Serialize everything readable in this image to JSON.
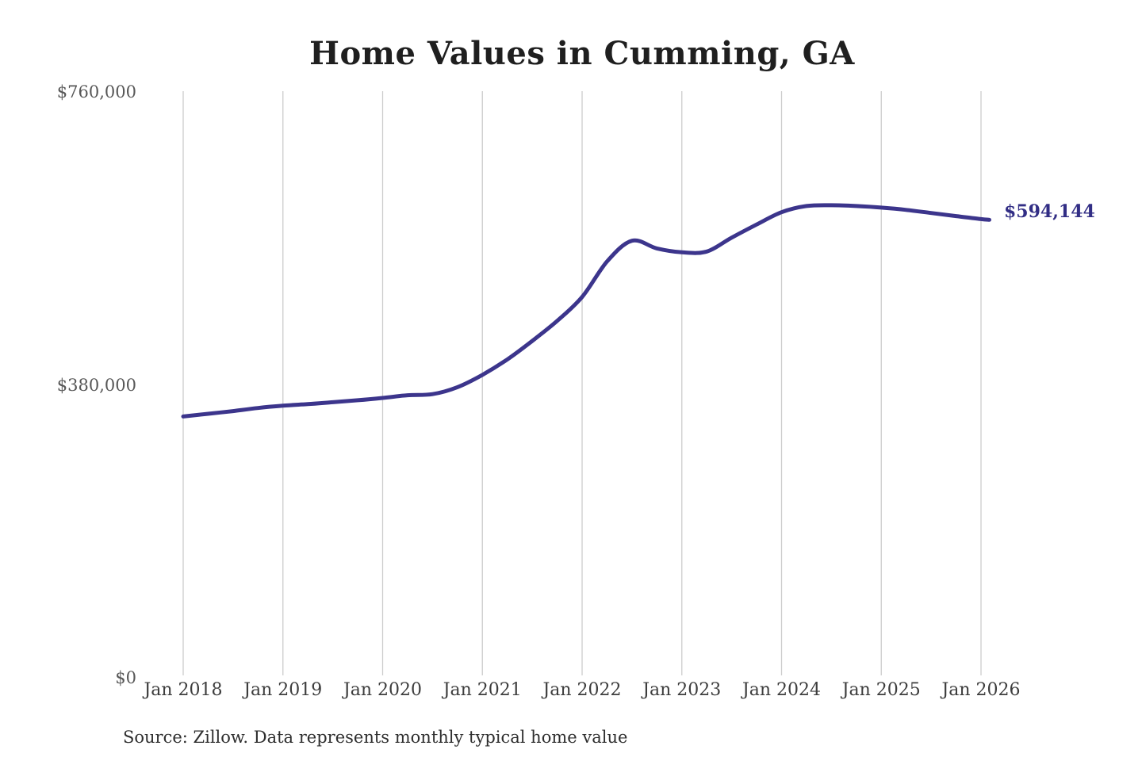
{
  "title": {
    "text": "Home Values in Cumming, GA",
    "color": "#1f1f1f"
  },
  "end_label": {
    "text": "$594,144",
    "color": "#322e85"
  },
  "source_note": {
    "text": "Source: Zillow. Data represents monthly typical home value",
    "color": "#2e2e2e"
  },
  "axes": {
    "x_tick_labels": [
      "Jan 2018",
      "Jan 2019",
      "Jan 2020",
      "Jan 2021",
      "Jan 2022",
      "Jan 2023",
      "Jan 2024",
      "Jan 2025",
      "Jan 2026"
    ],
    "y_ticks": [
      {
        "value": 0,
        "label": "$0"
      },
      {
        "value": 380000,
        "label": "$380,000"
      },
      {
        "value": 760000,
        "label": "$760,000"
      }
    ],
    "x_label_color": "#3d3d3d",
    "y_label_color": "#575757",
    "grid_color": "#cccccc"
  },
  "chart_data": {
    "type": "line",
    "title": "Home Values in Cumming, GA",
    "series_name": "Monthly typical home value (USD)",
    "x": [
      "2018-01",
      "2018-04",
      "2018-07",
      "2018-10",
      "2019-01",
      "2019-04",
      "2019-07",
      "2019-10",
      "2020-01",
      "2020-04",
      "2020-07",
      "2020-10",
      "2021-01",
      "2021-04",
      "2021-07",
      "2021-10",
      "2022-01",
      "2022-04",
      "2022-07",
      "2022-10",
      "2023-01",
      "2023-04",
      "2023-07",
      "2023-10",
      "2024-01",
      "2024-04",
      "2024-07",
      "2024-10",
      "2025-01",
      "2025-04",
      "2025-07",
      "2025-10",
      "2026-01",
      "2026-02"
    ],
    "values": [
      339000,
      342500,
      346000,
      350000,
      353000,
      355000,
      357500,
      360000,
      363000,
      366500,
      368000,
      377000,
      393000,
      413000,
      437000,
      463000,
      494000,
      540000,
      567000,
      557000,
      552000,
      553000,
      571000,
      588000,
      604000,
      612000,
      613000,
      612000,
      610000,
      607000,
      603000,
      599000,
      595000,
      594144
    ],
    "ylim": [
      0,
      760000
    ],
    "xlim": [
      "2018-01",
      "2026-02"
    ],
    "x_tick_interval": "1 year",
    "grid": "vertical-only",
    "legend": "none",
    "line_color": "#3c358c",
    "final_value": 594144,
    "final_value_label": "$594,144"
  }
}
